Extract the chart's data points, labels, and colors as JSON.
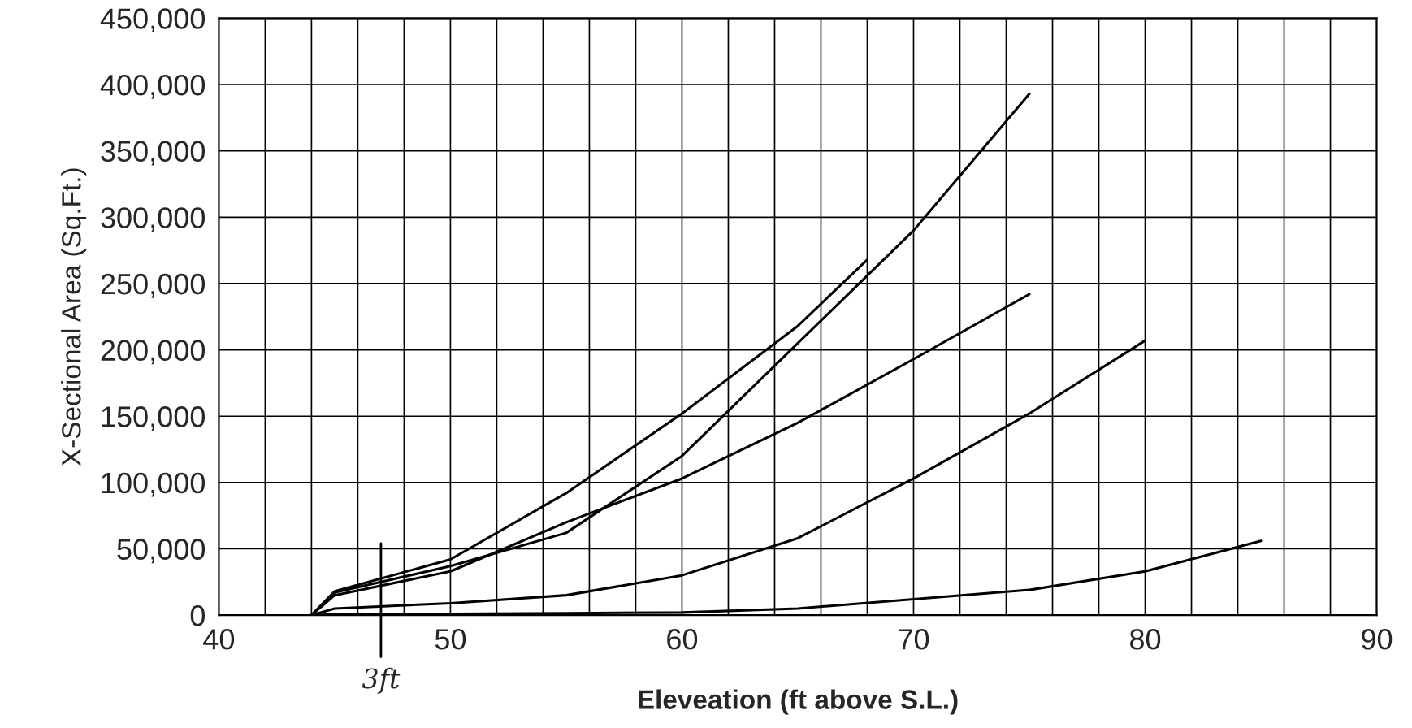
{
  "chart_data": {
    "type": "line",
    "xlabel": "Eleveation (ft above S.L.)",
    "ylabel": "X-Sectional Area (Sq.Ft.)",
    "series": [
      {
        "color": "#000000",
        "x": [
          44,
          45,
          50,
          55,
          60,
          65,
          68
        ],
        "values": [
          0,
          18000,
          42000,
          92000,
          152000,
          218000,
          268000
        ]
      },
      {
        "color": "#000000",
        "x": [
          44,
          45,
          50,
          55,
          60,
          65,
          70,
          75
        ],
        "values": [
          0,
          17000,
          37000,
          62000,
          120000,
          205000,
          290000,
          393000
        ]
      },
      {
        "color": "#000000",
        "x": [
          44,
          45,
          50,
          55,
          60,
          65,
          70,
          75
        ],
        "values": [
          0,
          15000,
          33000,
          70000,
          103000,
          145000,
          193000,
          242000
        ]
      },
      {
        "color": "#000000",
        "x": [
          44,
          45,
          50,
          55,
          60,
          65,
          70,
          75,
          80
        ],
        "values": [
          0,
          5000,
          9000,
          15000,
          30000,
          58000,
          103000,
          152000,
          207000
        ]
      },
      {
        "color": "#000000",
        "x": [
          44,
          45,
          50,
          55,
          60,
          65,
          70,
          75,
          80,
          85
        ],
        "values": [
          0,
          500,
          1000,
          1500,
          2000,
          5000,
          12000,
          19000,
          33000,
          56000
        ]
      }
    ],
    "xlim": [
      40,
      90
    ],
    "ylim": [
      0,
      450000
    ],
    "xticks": [
      40,
      {
        "value": 42,
        "label": null
      },
      {
        "value": 44,
        "label": null
      },
      {
        "value": 46,
        "label": null
      },
      {
        "value": 48,
        "label": null
      },
      50,
      {
        "value": 52,
        "label": null
      },
      {
        "value": 54,
        "label": null
      },
      {
        "value": 56,
        "label": null
      },
      {
        "value": 58,
        "label": null
      },
      60,
      {
        "value": 62,
        "label": null
      },
      {
        "value": 64,
        "label": null
      },
      {
        "value": 66,
        "label": null
      },
      {
        "value": 68,
        "label": null
      },
      70,
      {
        "value": 72,
        "label": null
      },
      {
        "value": 74,
        "label": null
      },
      {
        "value": 76,
        "label": null
      },
      {
        "value": 78,
        "label": null
      },
      80,
      {
        "value": 82,
        "label": null
      },
      {
        "value": 84,
        "label": null
      },
      {
        "value": 86,
        "label": null
      },
      {
        "value": 88,
        "label": null
      },
      90
    ],
    "yticks": [
      {
        "value": 0,
        "label": "0"
      },
      {
        "value": 50000,
        "label": "50,000"
      },
      {
        "value": 100000,
        "label": "100,000"
      },
      {
        "value": 150000,
        "label": "150,000"
      },
      {
        "value": 200000,
        "label": "200,000"
      },
      {
        "value": 250000,
        "label": "250,000"
      },
      {
        "value": 300000,
        "label": "300,000"
      },
      {
        "value": 350000,
        "label": "350,000"
      },
      {
        "value": 400000,
        "label": "400,000"
      },
      {
        "value": 450000,
        "label": "450,000"
      }
    ],
    "grid": true,
    "legend": false,
    "marker": "none",
    "line_style": "solid",
    "annotations": [
      "3ft"
    ]
  }
}
